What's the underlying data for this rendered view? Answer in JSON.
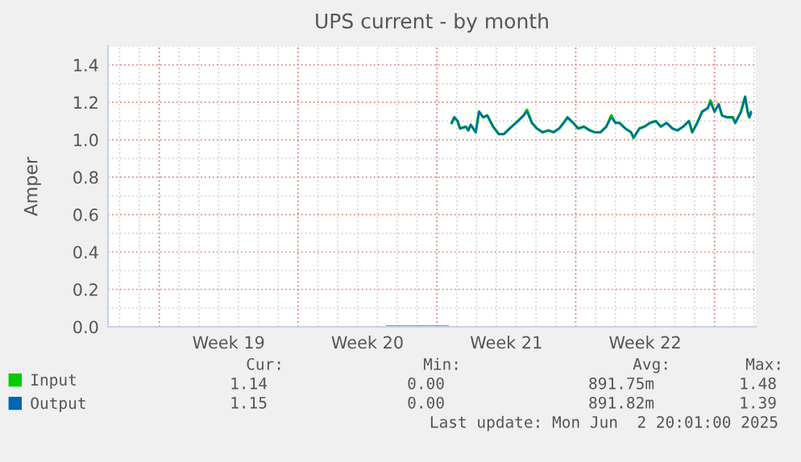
{
  "chart_data": {
    "type": "line",
    "title": "UPS current - by month",
    "ylabel": "Amper",
    "xlim": [
      "2025-05-01T10:00",
      "2025-06-03T02:00"
    ],
    "xticks": [
      {
        "value": "2025-05-07T12:00",
        "label": "Week 19"
      },
      {
        "value": "2025-05-14T12:00",
        "label": "Week 20"
      },
      {
        "value": "2025-05-21T12:00",
        "label": "Week 21"
      },
      {
        "value": "2025-05-28T12:00",
        "label": "Week 22"
      }
    ],
    "ylim": [
      0,
      1.5
    ],
    "yticks": [
      {
        "value": 0,
        "label": "0.0"
      },
      0.2,
      0.4,
      0.6,
      0.8,
      {
        "value": 1,
        "label": "1.0"
      },
      1.2,
      1.4
    ],
    "x": [
      "2025-05-15T12:00",
      "2025-05-18T13:00",
      "2025-05-18T15:00",
      "2025-05-18T18:00",
      "2025-05-18T21:00",
      "2025-05-19T01:00",
      "2025-05-19T04:00",
      "2025-05-19T11:00",
      "2025-05-19T14:00",
      "2025-05-19T17:00",
      "2025-05-19T23:00",
      "2025-05-20T03:00",
      "2025-05-20T08:00",
      "2025-05-20T13:00",
      "2025-05-20T20:00",
      "2025-05-21T03:00",
      "2025-05-21T09:00",
      "2025-05-21T16:00",
      "2025-05-22T02:00",
      "2025-05-22T09:00",
      "2025-05-22T13:00",
      "2025-05-22T19:00",
      "2025-05-23T01:00",
      "2025-05-23T08:00",
      "2025-05-23T15:00",
      "2025-05-23T21:00",
      "2025-05-24T04:00",
      "2025-05-24T11:00",
      "2025-05-24T14:00",
      "2025-05-24T21:00",
      "2025-05-25T03:00",
      "2025-05-25T10:00",
      "2025-05-25T17:00",
      "2025-05-25T23:00",
      "2025-05-26T06:00",
      "2025-05-26T13:00",
      "2025-05-26T19:00",
      "2025-05-27T00:00",
      "2025-05-27T05:00",
      "2025-05-27T12:00",
      "2025-05-27T19:00",
      "2025-05-27T22:00",
      "2025-05-28T05:00",
      "2025-05-28T11:00",
      "2025-05-28T18:00",
      "2025-05-29T01:00",
      "2025-05-29T07:00",
      "2025-05-29T14:00",
      "2025-05-29T21:00",
      "2025-05-30T03:00",
      "2025-05-30T10:00",
      "2025-05-30T17:00",
      "2025-05-30T21:00",
      "2025-05-31T03:00",
      "2025-05-31T09:00",
      "2025-05-31T16:00",
      "2025-05-31T19:00",
      "2025-06-01T00:00",
      "2025-06-01T05:00",
      "2025-06-01T09:00",
      "2025-06-01T15:00",
      "2025-06-01T22:00",
      "2025-06-02T01:00",
      "2025-06-02T08:00",
      "2025-06-02T13:00",
      "2025-06-02T16:00",
      "2025-06-02T18:00",
      "2025-06-02T20:00"
    ],
    "series": [
      {
        "name": "Input",
        "color": "#00cc00",
        "values": [
          0,
          0,
          null,
          1.09,
          1.12,
          1.1,
          1.06,
          1.07,
          1.05,
          1.08,
          1.04,
          1.15,
          1.12,
          1.13,
          1.07,
          1.03,
          1.03,
          1.06,
          1.1,
          1.13,
          1.16,
          1.09,
          1.06,
          1.04,
          1.05,
          1.04,
          1.06,
          1.1,
          1.12,
          1.09,
          1.06,
          1.07,
          1.05,
          1.04,
          1.04,
          1.07,
          1.13,
          1.09,
          1.09,
          1.06,
          1.04,
          1.01,
          1.06,
          1.07,
          1.09,
          1.1,
          1.07,
          1.09,
          1.06,
          1.05,
          1.07,
          1.1,
          1.04,
          1.09,
          1.15,
          1.17,
          1.21,
          1.15,
          1.19,
          1.13,
          1.12,
          1.12,
          1.09,
          1.15,
          1.23,
          1.15,
          1.12,
          1.14
        ]
      },
      {
        "name": "Output",
        "color": "#0066b3",
        "values": [
          0,
          0,
          null,
          1.09,
          1.12,
          1.1,
          1.06,
          1.07,
          1.05,
          1.08,
          1.04,
          1.15,
          1.12,
          1.13,
          1.07,
          1.03,
          1.03,
          1.06,
          1.1,
          1.13,
          1.15,
          1.09,
          1.06,
          1.04,
          1.05,
          1.04,
          1.06,
          1.1,
          1.12,
          1.09,
          1.06,
          1.07,
          1.05,
          1.04,
          1.04,
          1.07,
          1.12,
          1.09,
          1.09,
          1.06,
          1.04,
          1.01,
          1.06,
          1.07,
          1.09,
          1.1,
          1.07,
          1.09,
          1.06,
          1.05,
          1.07,
          1.1,
          1.04,
          1.09,
          1.15,
          1.17,
          1.2,
          1.15,
          1.19,
          1.13,
          1.12,
          1.12,
          1.09,
          1.15,
          1.23,
          1.15,
          1.12,
          1.15
        ]
      }
    ],
    "grid": true,
    "legend": "bottom left",
    "marker": "none",
    "line_style": "solid",
    "annotations": [
      "Cur:",
      "Min:",
      "Avg:",
      "Max:",
      "1.14",
      "0.00",
      "891.75m",
      "1.48",
      "1.15",
      "0.00",
      "891.82m",
      "1.39",
      "Last update: Mon Jun  2 20:01:00 2025"
    ]
  }
}
